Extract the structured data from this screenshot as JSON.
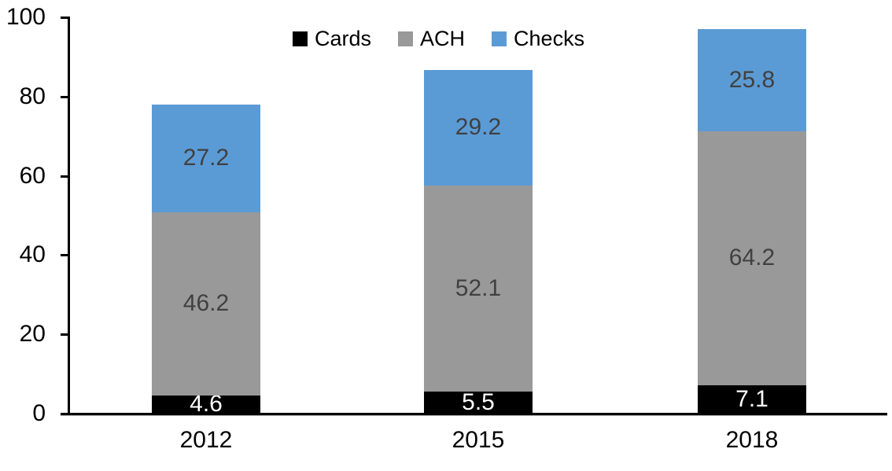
{
  "chart_data": {
    "type": "bar",
    "stacked": true,
    "categories": [
      "2012",
      "2015",
      "2018"
    ],
    "series": [
      {
        "name": "Cards",
        "color": "#000000",
        "label_color": "#ffffff",
        "values": [
          4.6,
          5.5,
          7.1
        ]
      },
      {
        "name": "ACH",
        "color": "#999999",
        "label_color": "#404040",
        "values": [
          46.2,
          52.1,
          64.2
        ]
      },
      {
        "name": "Checks",
        "color": "#5b9bd5",
        "label_color": "#404040",
        "values": [
          27.2,
          29.2,
          25.8
        ]
      }
    ],
    "totals": [
      78.0,
      86.8,
      97.1
    ],
    "ylim": [
      0,
      100
    ],
    "yticks": [
      0,
      20,
      40,
      60,
      80,
      100
    ],
    "legend_position": "top-center",
    "grid": false,
    "axis_color": "#000000",
    "background_color": "#ffffff"
  }
}
